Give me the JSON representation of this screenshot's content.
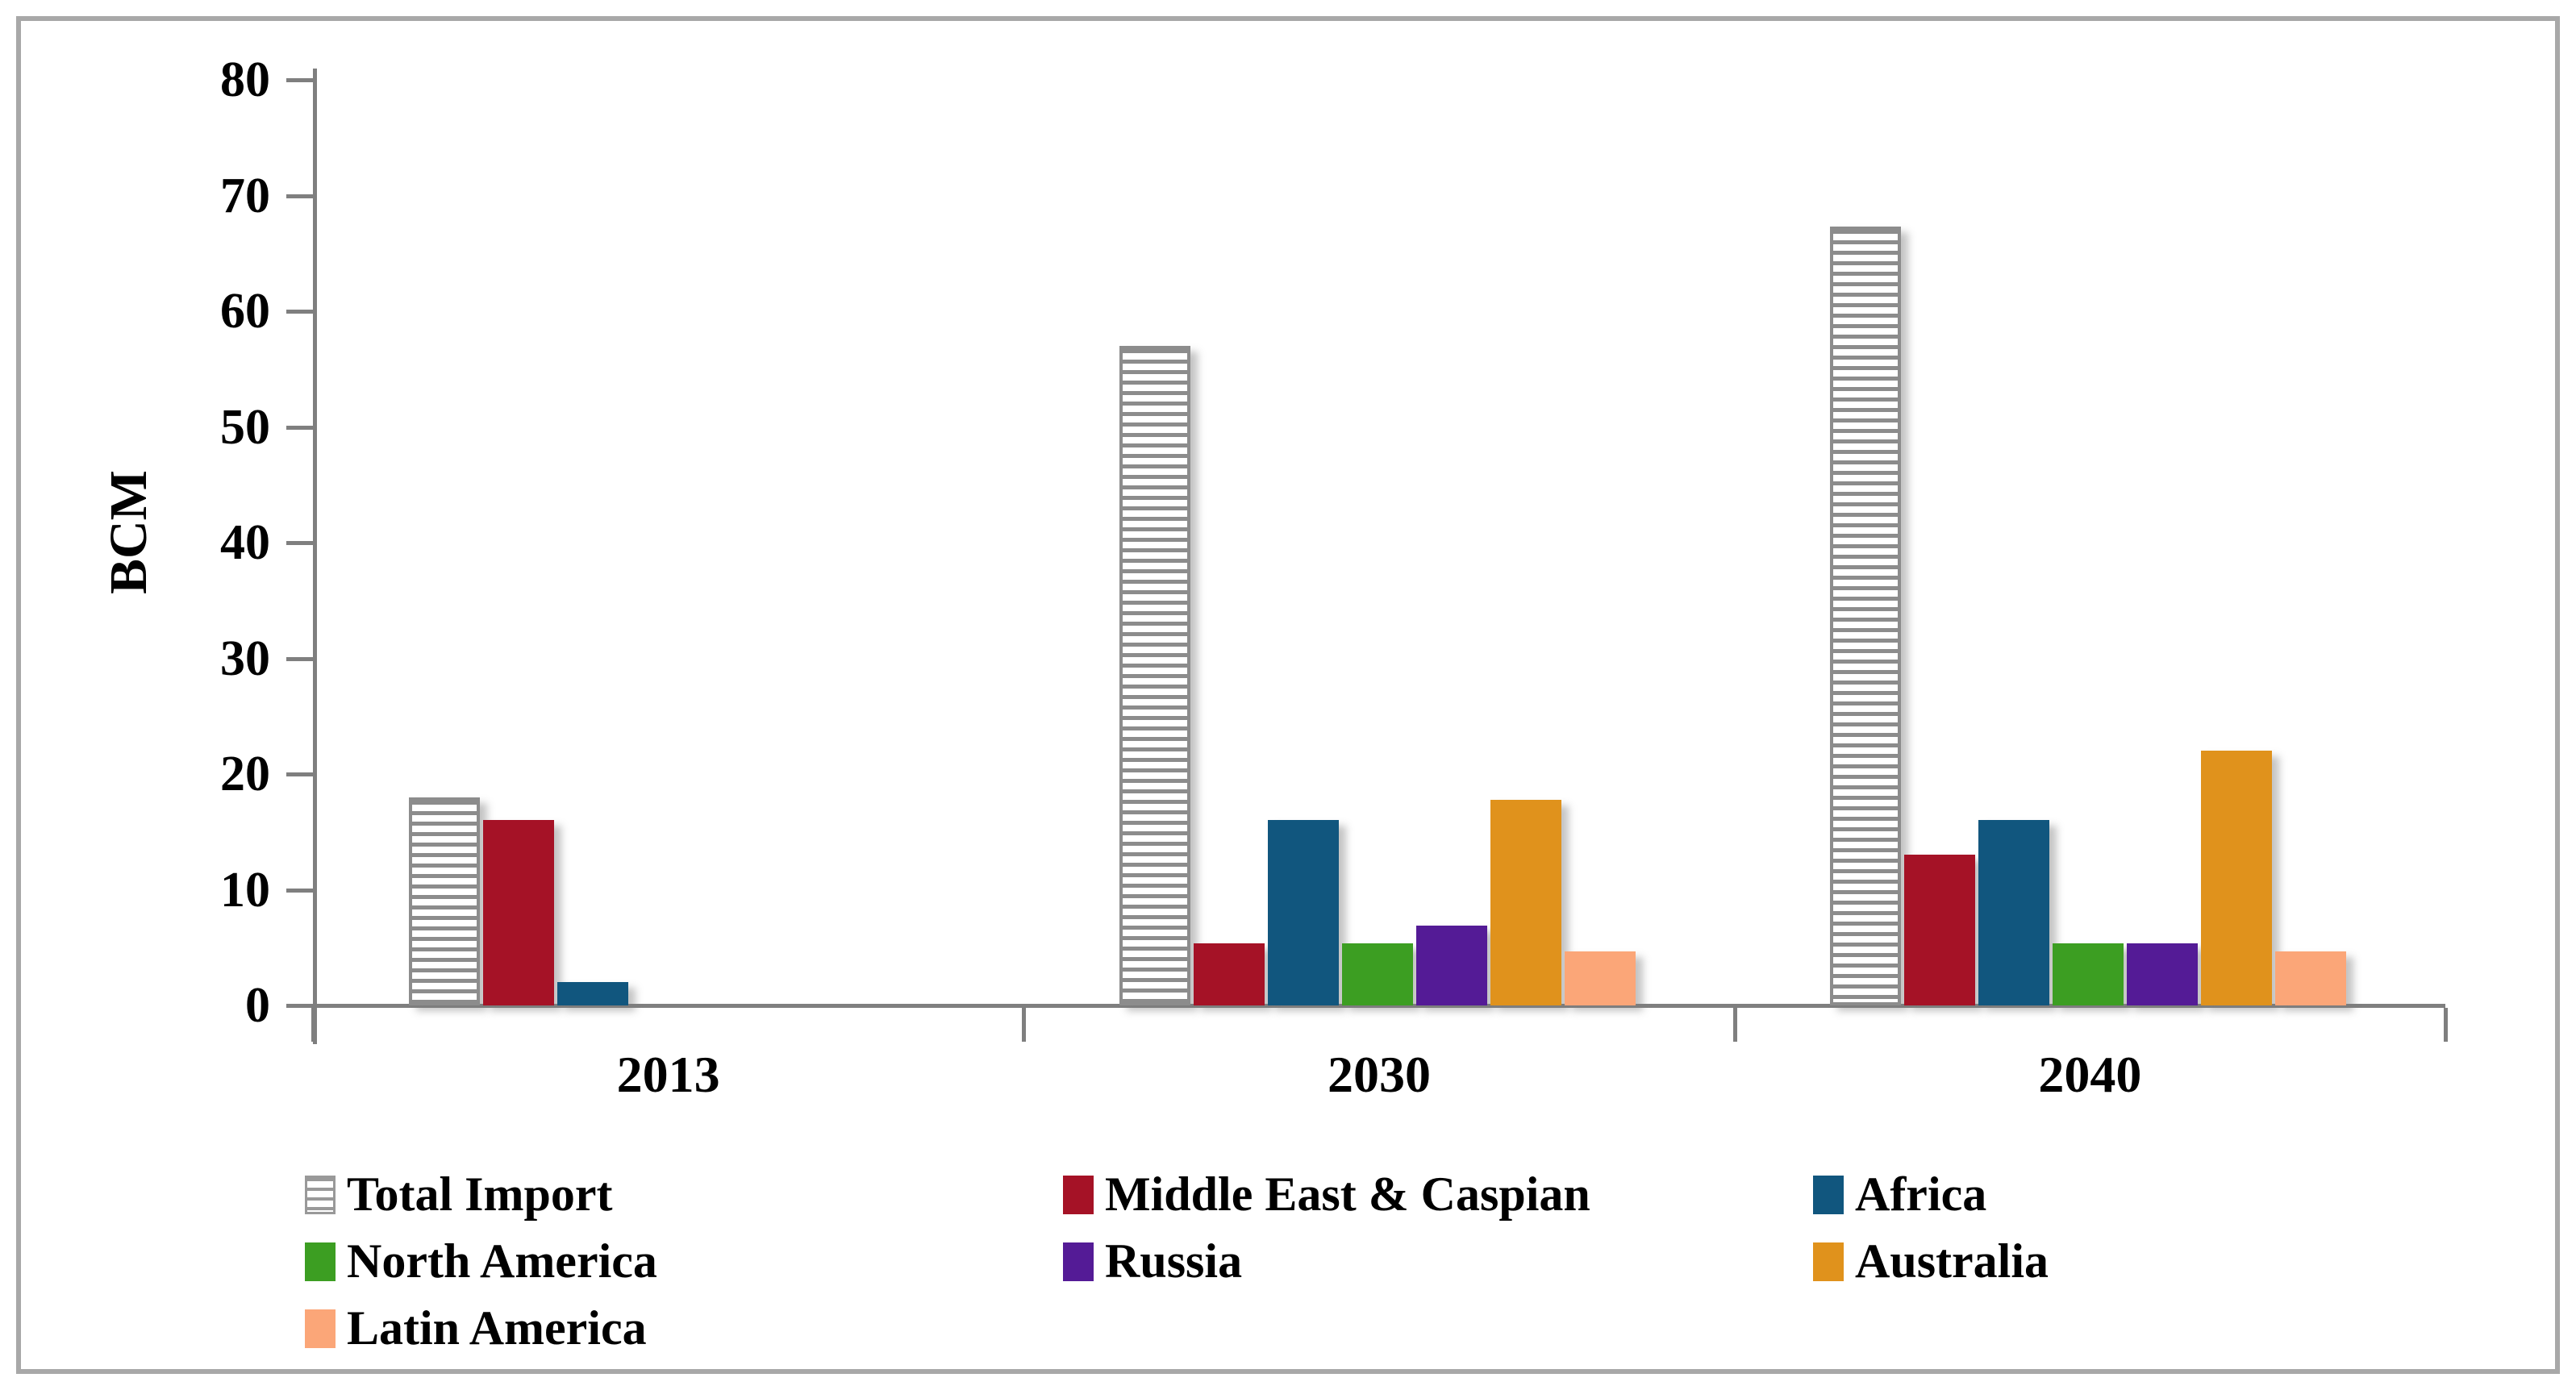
{
  "chart_data": {
    "type": "bar",
    "title": "",
    "ylabel": "BCM",
    "xlabel": "",
    "ylim": [
      0,
      80
    ],
    "yticks": [
      0,
      10,
      20,
      30,
      40,
      50,
      60,
      70,
      80
    ],
    "categories": [
      "2013",
      "2030",
      "2040"
    ],
    "series": [
      {
        "name": "Total Import",
        "style": "hatched",
        "color": "#8c8c8c",
        "values": [
          18,
          57,
          67.3
        ]
      },
      {
        "name": "Middle East & Caspian",
        "style": "solid",
        "color": "#a51226",
        "values": [
          16,
          5.4,
          13
        ]
      },
      {
        "name": "Africa",
        "style": "solid",
        "color": "#11567e",
        "values": [
          2,
          16,
          16
        ]
      },
      {
        "name": "North America",
        "style": "solid",
        "color": "#3c9e22",
        "values": [
          0,
          5.4,
          5.4
        ]
      },
      {
        "name": "Russia",
        "style": "solid",
        "color": "#541b96",
        "values": [
          0,
          6.9,
          5.4
        ]
      },
      {
        "name": "Australia",
        "style": "solid",
        "color": "#e0921c",
        "values": [
          0,
          17.8,
          22
        ]
      },
      {
        "name": "Latin America",
        "style": "solid",
        "color": "#fba678",
        "values": [
          0,
          4.7,
          4.7
        ]
      }
    ],
    "legend_position": "bottom",
    "legend_rows": [
      [
        0,
        1,
        2
      ],
      [
        3,
        4,
        5
      ],
      [
        6
      ]
    ],
    "grid": false,
    "axis_color": "#7f7f7f",
    "frame_color": "#a8a8a8"
  }
}
